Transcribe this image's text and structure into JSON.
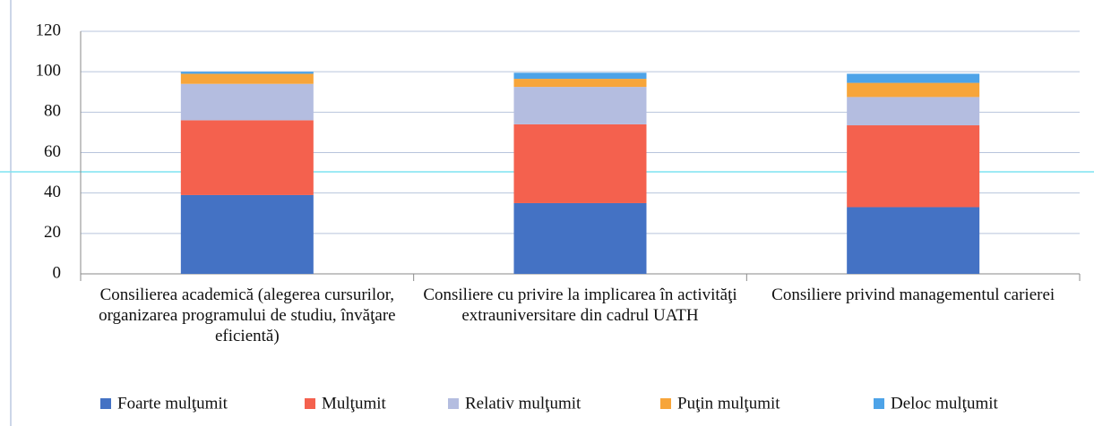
{
  "chart_data": {
    "type": "stacked_bar",
    "categories": [
      "Consilierea academică (alegerea cursurilor, organizarea programului de studiu, învăţare eficientă)",
      "Consiliere cu privire la implicarea în activităţi extrauniversitare din cadrul UATH",
      "Consiliere privind managementul carierei"
    ],
    "series": [
      {
        "name": "Foarte mulţumit",
        "color": "#4472c4",
        "values": [
          39,
          35,
          33
        ]
      },
      {
        "name": "Mulţumit",
        "color": "#f4614e",
        "values": [
          37,
          39,
          40.5
        ]
      },
      {
        "name": "Relativ mulţumit",
        "color": "#b4bde0",
        "values": [
          18,
          18.5,
          14
        ]
      },
      {
        "name": "Puţin mulţumit",
        "color": "#f7a53a",
        "values": [
          5,
          4,
          7
        ]
      },
      {
        "name": "Deloc mulţumit",
        "color": "#4da3e8",
        "values": [
          1,
          3,
          4.5
        ]
      }
    ],
    "ylim": [
      0,
      120
    ],
    "yticks": [
      0,
      20,
      40,
      60,
      80,
      100,
      120
    ],
    "grid": true,
    "legend": "bottom"
  }
}
